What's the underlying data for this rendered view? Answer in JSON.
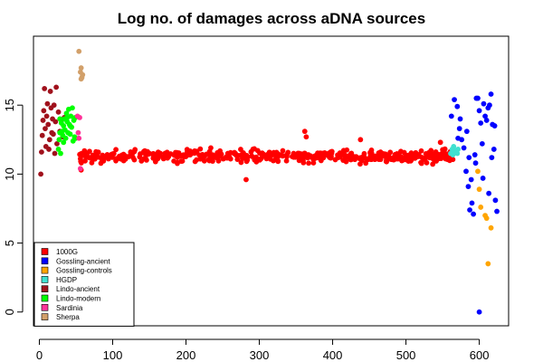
{
  "chart_data": {
    "type": "scatter",
    "title": "Log no. of damages across aDNA sources",
    "xlabel": "",
    "ylabel": "",
    "xlim": [
      -8,
      640
    ],
    "ylim": [
      -1,
      20
    ],
    "xticks": [
      0,
      100,
      200,
      300,
      400,
      500,
      600
    ],
    "yticks": [
      0,
      5,
      10,
      15
    ],
    "legend_position": "bottom-left",
    "series": [
      {
        "name": "1000G",
        "color": "#ff0000",
        "range": [
          55,
          565
        ],
        "mean": 11.3,
        "spread": 0.45,
        "count": 480,
        "extra_points": [
          [
            57,
            10.3
          ],
          [
            282,
            9.6
          ],
          [
            362,
            13.1
          ],
          [
            364,
            12.7
          ],
          [
            438,
            12.5
          ],
          [
            547,
            12.3
          ]
        ]
      },
      {
        "name": "Gossling-ancient",
        "color": "#0000ff",
        "points": [
          [
            562,
            14.2
          ],
          [
            566,
            15.4
          ],
          [
            570,
            14.9
          ],
          [
            573,
            13.3
          ],
          [
            576,
            12.5
          ],
          [
            579,
            11.9
          ],
          [
            582,
            10.2
          ],
          [
            585,
            9.1
          ],
          [
            587,
            7.4
          ],
          [
            590,
            7.9
          ],
          [
            592,
            7.1
          ],
          [
            594,
            11.4
          ],
          [
            596,
            15.5
          ],
          [
            598,
            15.5
          ],
          [
            600,
            14.6
          ],
          [
            602,
            13.7
          ],
          [
            604,
            12.2
          ],
          [
            606,
            15.1
          ],
          [
            608,
            14.2
          ],
          [
            610,
            13.9
          ],
          [
            612,
            14.8
          ],
          [
            614,
            15.0
          ],
          [
            616,
            15.8
          ],
          [
            618,
            13.6
          ],
          [
            620,
            11.8
          ],
          [
            622,
            8.1
          ],
          [
            624,
            7.3
          ],
          [
            600,
            0.0
          ],
          [
            589,
            9.6
          ],
          [
            583,
            13.1
          ],
          [
            574,
            14.0
          ],
          [
            571,
            12.6
          ],
          [
            586,
            11.2
          ],
          [
            595,
            10.8
          ],
          [
            605,
            9.7
          ],
          [
            613,
            8.6
          ],
          [
            617,
            11.2
          ],
          [
            621,
            13.5
          ]
        ]
      },
      {
        "name": "Gossling-controls",
        "color": "#ffa500",
        "points": [
          [
            598,
            10.2
          ],
          [
            600,
            8.9
          ],
          [
            602,
            7.6
          ],
          [
            608,
            7.0
          ],
          [
            610,
            6.8
          ],
          [
            612,
            3.5
          ],
          [
            616,
            6.1
          ]
        ]
      },
      {
        "name": "HGDP",
        "color": "#40e0d0",
        "points": [
          [
            561,
            11.5
          ],
          [
            563,
            11.8
          ],
          [
            565,
            12.0
          ],
          [
            566,
            11.6
          ],
          [
            568,
            11.7
          ],
          [
            570,
            11.5
          ],
          [
            571,
            11.8
          ],
          [
            564,
            11.4
          ]
        ]
      },
      {
        "name": "Lindo-ancient",
        "color": "#a0111c",
        "points": [
          [
            2,
            10.0
          ],
          [
            3,
            11.6
          ],
          [
            4,
            12.8
          ],
          [
            5,
            13.9
          ],
          [
            6,
            14.6
          ],
          [
            7,
            16.2
          ],
          [
            8,
            13.3
          ],
          [
            9,
            12.0
          ],
          [
            10,
            14.2
          ],
          [
            11,
            15.1
          ],
          [
            12,
            13.6
          ],
          [
            13,
            11.8
          ],
          [
            14,
            12.5
          ],
          [
            15,
            16.0
          ],
          [
            16,
            14.8
          ],
          [
            17,
            13.0
          ],
          [
            18,
            14.0
          ],
          [
            19,
            12.9
          ],
          [
            20,
            15.0
          ],
          [
            21,
            11.5
          ],
          [
            22,
            13.8
          ],
          [
            23,
            16.3
          ],
          [
            24,
            12.2
          ],
          [
            26,
            14.5
          ],
          [
            28,
            13.1
          ],
          [
            30,
            13.9
          ],
          [
            32,
            12.7
          ],
          [
            34,
            14.1
          ]
        ]
      },
      {
        "name": "Lindo-modern",
        "color": "#00ff00",
        "points": [
          [
            26,
            11.8
          ],
          [
            27,
            12.5
          ],
          [
            28,
            13.0
          ],
          [
            29,
            11.5
          ],
          [
            30,
            13.7
          ],
          [
            31,
            13.1
          ],
          [
            32,
            12.8
          ],
          [
            33,
            13.5
          ],
          [
            34,
            14.0
          ],
          [
            35,
            13.2
          ],
          [
            36,
            12.6
          ],
          [
            37,
            14.4
          ],
          [
            38,
            13.8
          ],
          [
            39,
            13.0
          ],
          [
            40,
            14.7
          ],
          [
            41,
            13.6
          ],
          [
            42,
            12.9
          ],
          [
            43,
            14.2
          ],
          [
            44,
            13.4
          ],
          [
            45,
            14.8
          ],
          [
            46,
            12.4
          ],
          [
            47,
            13.9
          ],
          [
            48,
            12.7
          ],
          [
            49,
            14.1
          ],
          [
            50,
            12.6
          ],
          [
            28,
            14.0
          ],
          [
            33,
            12.3
          ],
          [
            38,
            14.1
          ],
          [
            42,
            13.5
          ]
        ]
      },
      {
        "name": "Sardinia",
        "color": "#ff3399",
        "points": [
          [
            52,
            14.2
          ],
          [
            53,
            13.0
          ],
          [
            54,
            12.6
          ],
          [
            55,
            14.1
          ],
          [
            56,
            10.4
          ]
        ]
      },
      {
        "name": "Sherpa",
        "color": "#d2a06a",
        "points": [
          [
            54,
            18.9
          ],
          [
            56,
            17.4
          ],
          [
            57,
            17.7
          ],
          [
            58,
            17.0
          ],
          [
            59,
            17.2
          ],
          [
            57,
            16.9
          ]
        ]
      }
    ]
  }
}
